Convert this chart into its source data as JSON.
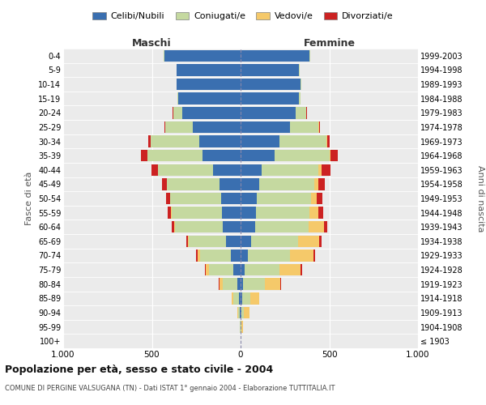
{
  "age_groups": [
    "100+",
    "95-99",
    "90-94",
    "85-89",
    "80-84",
    "75-79",
    "70-74",
    "65-69",
    "60-64",
    "55-59",
    "50-54",
    "45-49",
    "40-44",
    "35-39",
    "30-34",
    "25-29",
    "20-24",
    "15-19",
    "10-14",
    "5-9",
    "0-4"
  ],
  "birth_years": [
    "≤ 1903",
    "1904-1908",
    "1909-1913",
    "1914-1918",
    "1919-1923",
    "1924-1928",
    "1929-1933",
    "1934-1938",
    "1939-1943",
    "1944-1948",
    "1949-1953",
    "1954-1958",
    "1959-1963",
    "1964-1968",
    "1969-1973",
    "1974-1978",
    "1979-1983",
    "1984-1988",
    "1989-1993",
    "1994-1998",
    "1999-2003"
  ],
  "males": {
    "celibi": [
      2,
      2,
      5,
      10,
      20,
      40,
      55,
      80,
      100,
      105,
      110,
      120,
      155,
      215,
      235,
      270,
      330,
      350,
      360,
      360,
      430
    ],
    "coniugati": [
      0,
      2,
      10,
      30,
      80,
      140,
      175,
      210,
      270,
      285,
      285,
      295,
      310,
      310,
      270,
      155,
      50,
      5,
      3,
      2,
      2
    ],
    "vedovi": [
      0,
      2,
      5,
      12,
      20,
      15,
      12,
      8,
      5,
      3,
      2,
      2,
      2,
      1,
      1,
      1,
      1,
      0,
      0,
      0,
      0
    ],
    "divorziati": [
      0,
      0,
      0,
      0,
      2,
      5,
      8,
      10,
      15,
      20,
      22,
      25,
      35,
      35,
      15,
      5,
      2,
      0,
      0,
      0,
      0
    ]
  },
  "females": {
    "nubili": [
      2,
      2,
      5,
      8,
      15,
      25,
      40,
      60,
      80,
      85,
      90,
      105,
      120,
      190,
      220,
      280,
      310,
      330,
      340,
      330,
      390
    ],
    "coniugate": [
      0,
      2,
      15,
      45,
      120,
      195,
      240,
      265,
      305,
      305,
      305,
      310,
      320,
      310,
      265,
      160,
      60,
      8,
      3,
      2,
      2
    ],
    "vedove": [
      0,
      8,
      30,
      50,
      90,
      120,
      130,
      120,
      85,
      50,
      35,
      25,
      15,
      5,
      3,
      2,
      1,
      0,
      0,
      0,
      0
    ],
    "divorziate": [
      0,
      0,
      0,
      2,
      3,
      5,
      8,
      10,
      20,
      25,
      30,
      35,
      50,
      45,
      15,
      5,
      2,
      0,
      0,
      0,
      0
    ]
  },
  "colors": {
    "celibi": "#3a6fb0",
    "coniugati": "#c5d9a0",
    "vedovi": "#f5c96a",
    "divorziati": "#cc2222"
  },
  "title": "Popolazione per età, sesso e stato civile - 2004",
  "subtitle": "COMUNE DI PERGINE VALSUGANA (TN) - Dati ISTAT 1° gennaio 2004 - Elaborazione TUTTITALIA.IT",
  "xlabel_left": "Maschi",
  "xlabel_right": "Femmine",
  "ylabel_left": "Fasce di età",
  "ylabel_right": "Anni di nascita",
  "xlim": 1000,
  "background_color": "#ffffff",
  "plot_bg": "#ebebeb",
  "grid_color": "#ffffff"
}
